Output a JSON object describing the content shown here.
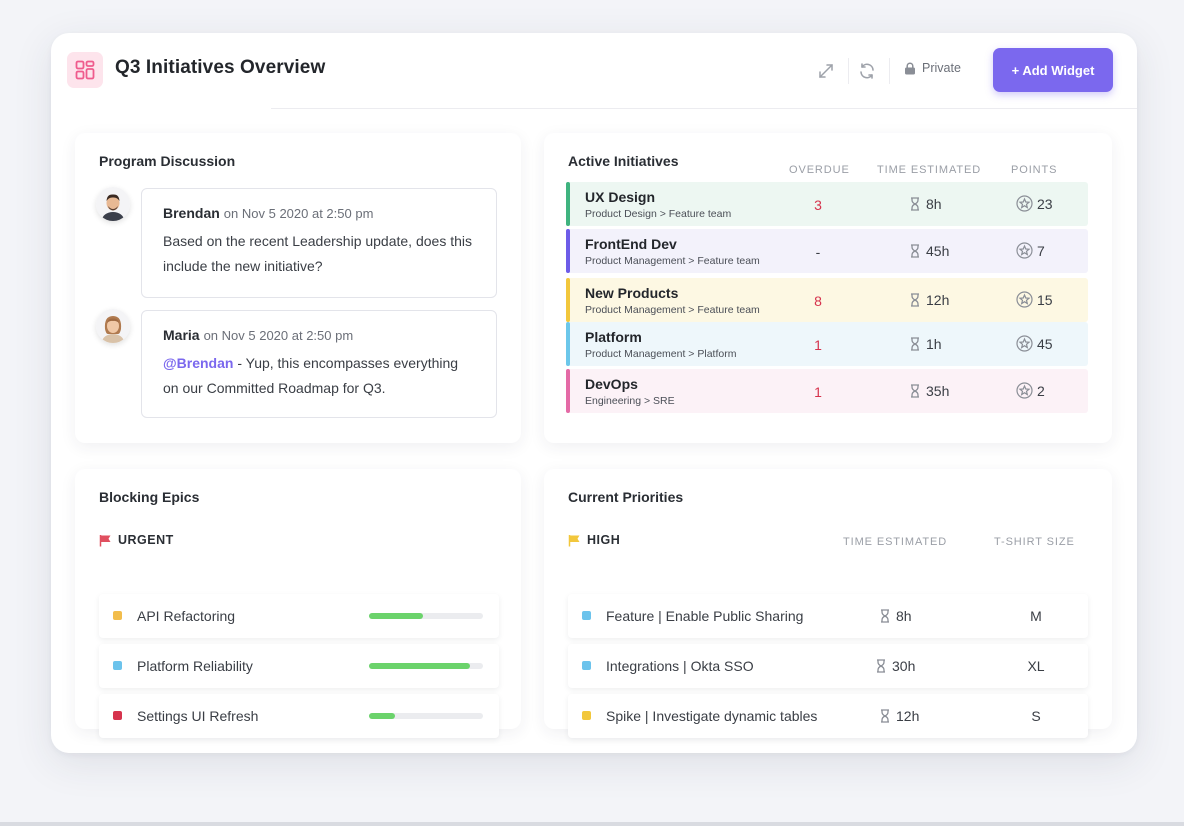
{
  "header": {
    "title": "Q3 Initiatives Overview",
    "private_label": "Private",
    "add_widget_label": "+ Add Widget"
  },
  "discussion": {
    "title": "Program Discussion",
    "messages": [
      {
        "author": "Brendan",
        "timestamp": "on Nov 5 2020 at 2:50 pm",
        "text": "Based on the recent Leadership update, does this include the new initiative?"
      },
      {
        "author": "Maria",
        "timestamp": "on Nov 5 2020 at 2:50 pm",
        "mention": "@Brendan",
        "text": " - Yup, this encompasses everything on our Committed Roadmap for Q3."
      }
    ]
  },
  "initiatives": {
    "title": "Active Initiatives",
    "columns": [
      "OVERDUE",
      "TIME ESTIMATED",
      "POINTS"
    ],
    "rows": [
      {
        "name": "UX Design",
        "path": "Product Design > Feature team",
        "overdue": "3",
        "time": "8h",
        "points": "23",
        "color": "#3fb37f",
        "bg": "#edf7f2"
      },
      {
        "name": "FrontEnd Dev",
        "path": "Product Management > Feature team",
        "overdue": "-",
        "time": "45h",
        "points": "7",
        "color": "#6d5ce8",
        "bg": "#f3f2fb"
      },
      {
        "name": "New Products",
        "path": "Product Management > Feature team",
        "overdue": "8",
        "time": "12h",
        "points": "15",
        "color": "#f2c73c",
        "bg": "#fdf8e3"
      },
      {
        "name": "Platform",
        "path": "Product Management > Platform",
        "overdue": "1",
        "time": "1h",
        "points": "45",
        "color": "#6cc7ea",
        "bg": "#eef7fb"
      },
      {
        "name": "DevOps",
        "path": "Engineering > SRE",
        "overdue": "1",
        "time": "35h",
        "points": "2",
        "color": "#e46aa6",
        "bg": "#fcf2f7"
      }
    ]
  },
  "epics": {
    "title": "Blocking Epics",
    "flag_label": "URGENT",
    "items": [
      {
        "label": "API Refactoring",
        "progress": 0.47,
        "color": "#f2bd4c"
      },
      {
        "label": "Platform Reliability",
        "progress": 0.89,
        "color": "#6cc3ec"
      },
      {
        "label": "Settings UI Refresh",
        "progress": 0.23,
        "color": "#d6334d"
      }
    ]
  },
  "priorities": {
    "title": "Current Priorities",
    "flag_label": "HIGH",
    "columns": [
      "TIME ESTIMATED",
      "T-SHIRT SIZE"
    ],
    "items": [
      {
        "label": "Feature | Enable Public Sharing",
        "time": "8h",
        "size": "M",
        "color": "#6cc3ec"
      },
      {
        "label": "Integrations | Okta SSO",
        "time": "30h",
        "size": "XL",
        "color": "#6cc3ec"
      },
      {
        "label": "Spike | Investigate dynamic tables",
        "time": "12h",
        "size": "S",
        "color": "#f2c73c"
      }
    ]
  },
  "colors": {
    "accent": "#7b68ee",
    "overdue": "#d6334d",
    "urgent_flag": "#e04f5f",
    "high_flag": "#f2c73c"
  }
}
